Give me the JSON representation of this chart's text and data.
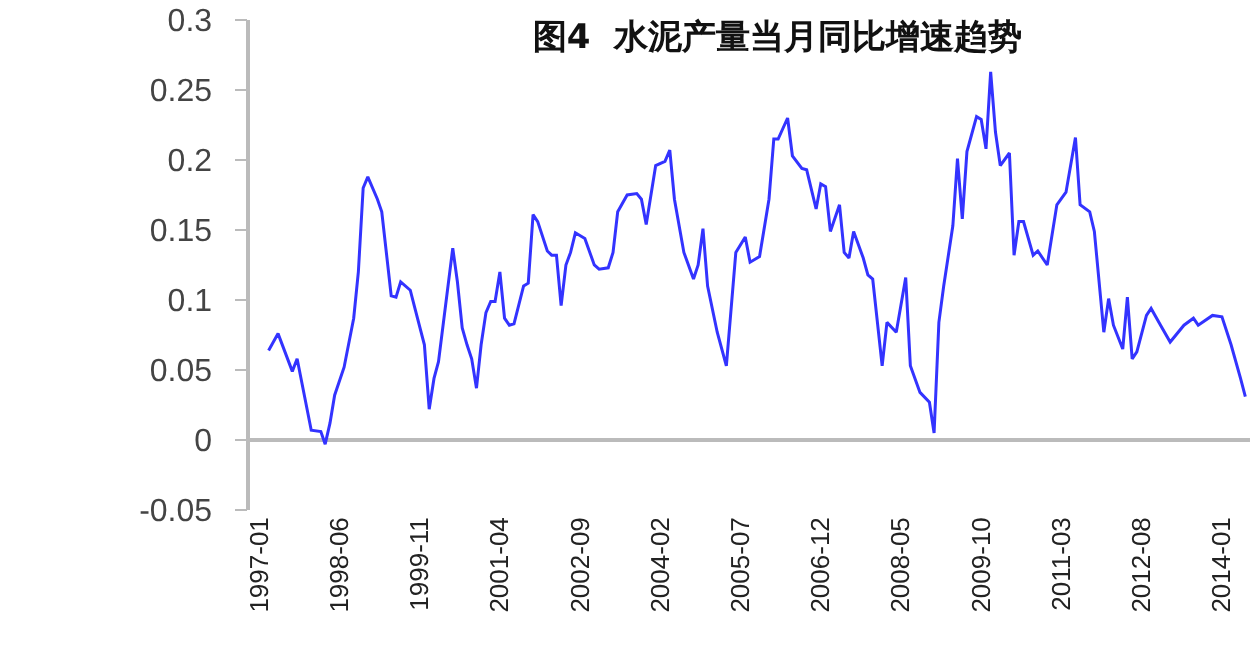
{
  "chart_data": {
    "type": "line",
    "title": "图4  水泥产量当月同比增速趋势",
    "x": [
      "1997-03",
      "1997-05",
      "1997-08",
      "1997-09",
      "1997-12",
      "1998-02",
      "1998-03",
      "1998-04",
      "1998-05",
      "1998-07",
      "1998-09",
      "1998-10",
      "1998-11",
      "1998-12",
      "1999-02",
      "1999-03",
      "1999-05",
      "1999-06",
      "1999-07",
      "1999-09",
      "1999-10",
      "1999-12",
      "2000-01",
      "2000-02",
      "2000-03",
      "2000-06",
      "2000-07",
      "2000-08",
      "2000-09",
      "2000-10",
      "2000-11",
      "2000-12",
      "2001-01",
      "2001-02",
      "2001-03",
      "2001-04",
      "2001-05",
      "2001-06",
      "2001-07",
      "2001-09",
      "2001-10",
      "2001-11",
      "2001-12",
      "2002-02",
      "2002-03",
      "2002-04",
      "2002-05",
      "2002-06",
      "2002-07",
      "2002-08",
      "2002-10",
      "2002-12",
      "2003-01",
      "2003-03",
      "2003-04",
      "2003-05",
      "2003-07",
      "2003-09",
      "2003-10",
      "2003-11",
      "2004-01",
      "2004-03",
      "2004-04",
      "2004-05",
      "2004-07",
      "2004-09",
      "2004-10",
      "2004-11",
      "2004-12",
      "2005-02",
      "2005-04",
      "2005-06",
      "2005-08",
      "2005-09",
      "2005-11",
      "2006-01",
      "2006-02",
      "2006-03",
      "2006-05",
      "2006-06",
      "2006-08",
      "2006-09",
      "2006-11",
      "2006-12",
      "2007-01",
      "2007-02",
      "2007-04",
      "2007-05",
      "2007-06",
      "2007-07",
      "2007-09",
      "2007-10",
      "2007-11",
      "2008-01",
      "2008-02",
      "2008-04",
      "2008-06",
      "2008-07",
      "2008-09",
      "2008-11",
      "2008-12",
      "2009-01",
      "2009-02",
      "2009-04",
      "2009-05",
      "2009-06",
      "2009-07",
      "2009-09",
      "2009-10",
      "2009-11",
      "2009-12",
      "2010-01",
      "2010-02",
      "2010-04",
      "2010-05",
      "2010-06",
      "2010-07",
      "2010-09",
      "2010-10",
      "2010-12",
      "2011-02",
      "2011-04",
      "2011-06",
      "2011-07",
      "2011-09",
      "2011-10",
      "2011-12",
      "2012-01",
      "2012-02",
      "2012-04",
      "2012-05",
      "2012-06",
      "2012-07",
      "2012-09",
      "2012-10",
      "2012-12",
      "2013-02",
      "2013-05",
      "2013-07",
      "2013-08",
      "2013-11",
      "2014-01",
      "2014-03",
      "2014-05",
      "2014-06"
    ],
    "series": [
      {
        "color": "#3333ff",
        "values": [
          0.064,
          0.076,
          0.049,
          0.058,
          0.007,
          0.006,
          -0.003,
          0.012,
          0.032,
          0.052,
          0.087,
          0.12,
          0.18,
          0.188,
          0.172,
          0.163,
          0.103,
          0.102,
          0.113,
          0.107,
          0.094,
          0.068,
          0.022,
          0.044,
          0.056,
          0.137,
          0.113,
          0.08,
          0.068,
          0.058,
          0.037,
          0.068,
          0.091,
          0.099,
          0.099,
          0.12,
          0.087,
          0.082,
          0.083,
          0.11,
          0.112,
          0.161,
          0.156,
          0.135,
          0.132,
          0.132,
          0.096,
          0.125,
          0.134,
          0.148,
          0.144,
          0.125,
          0.122,
          0.123,
          0.134,
          0.163,
          0.175,
          0.176,
          0.172,
          0.154,
          0.196,
          0.199,
          0.207,
          0.172,
          0.134,
          0.115,
          0.125,
          0.151,
          0.11,
          0.077,
          0.053,
          0.134,
          0.145,
          0.127,
          0.131,
          0.172,
          0.215,
          0.215,
          0.23,
          0.203,
          0.194,
          0.193,
          0.165,
          0.183,
          0.181,
          0.149,
          0.168,
          0.134,
          0.13,
          0.149,
          0.13,
          0.118,
          0.115,
          0.053,
          0.084,
          0.077,
          0.116,
          0.053,
          0.034,
          0.027,
          0.005,
          0.084,
          0.11,
          0.153,
          0.201,
          0.158,
          0.206,
          0.231,
          0.229,
          0.208,
          0.263,
          0.22,
          0.196,
          0.205,
          0.132,
          0.156,
          0.156,
          0.132,
          0.135,
          0.125,
          0.168,
          0.177,
          0.216,
          0.168,
          0.163,
          0.149,
          0.077,
          0.101,
          0.082,
          0.065,
          0.102,
          0.058,
          0.063,
          0.089,
          0.094,
          0.082,
          0.07,
          0.082,
          0.087,
          0.082,
          0.089,
          0.088,
          0.068,
          0.044,
          0.031
        ]
      }
    ],
    "xlim": [
      "1996-11",
      "2014-07"
    ],
    "xticks": [
      {
        "value": "1997-01",
        "label": "1997-01"
      },
      {
        "value": "1998-06",
        "label": "1998-06"
      },
      {
        "value": "1999-11",
        "label": "1999-11"
      },
      {
        "value": "2001-04",
        "label": "2001-04"
      },
      {
        "value": "2002-09",
        "label": "2002-09"
      },
      {
        "value": "2004-02",
        "label": "2004-02"
      },
      {
        "value": "2005-07",
        "label": "2005-07"
      },
      {
        "value": "2006-12",
        "label": "2006-12"
      },
      {
        "value": "2008-05",
        "label": "2008-05"
      },
      {
        "value": "2009-10",
        "label": "2009-10"
      },
      {
        "value": "2011-03",
        "label": "2011-03"
      },
      {
        "value": "2012-08",
        "label": "2012-08"
      },
      {
        "value": "2014-01",
        "label": "2014-01"
      }
    ],
    "ylim": [
      -0.05,
      0.3
    ],
    "yticks": [
      -0.05,
      0,
      0.05,
      0.1,
      0.15,
      0.2,
      0.25,
      0.3
    ],
    "marker": "none",
    "line_style": "solid"
  }
}
